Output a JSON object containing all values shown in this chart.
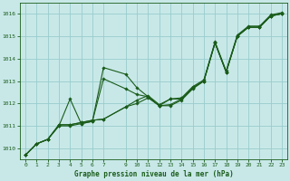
{
  "title": "Graphe pression niveau de la mer (hPa)",
  "bg_color": "#c8e8e8",
  "grid_color": "#99cccc",
  "line_color": "#1a5c1a",
  "ylim": [
    1009.5,
    1016.5
  ],
  "xlim": [
    -0.5,
    23.5
  ],
  "yticks": [
    1010,
    1011,
    1012,
    1013,
    1014,
    1015,
    1016
  ],
  "xticks": [
    0,
    1,
    2,
    3,
    4,
    5,
    6,
    7,
    9,
    10,
    11,
    12,
    13,
    14,
    15,
    16,
    17,
    18,
    19,
    20,
    21,
    22,
    23
  ],
  "series": [
    {
      "x": [
        0,
        1,
        2,
        3,
        4,
        5,
        6,
        7,
        9,
        10,
        11,
        12,
        13,
        14,
        15,
        16,
        17,
        18,
        19,
        20,
        21,
        22,
        23
      ],
      "y": [
        1009.7,
        1010.2,
        1010.4,
        1011.0,
        1011.0,
        1011.1,
        1011.2,
        1013.6,
        1013.3,
        1012.7,
        1012.3,
        1011.9,
        1012.2,
        1012.2,
        1012.7,
        1013.0,
        1014.7,
        1013.4,
        1015.0,
        1015.4,
        1015.4,
        1015.9,
        1016.0
      ]
    },
    {
      "x": [
        0,
        1,
        2,
        3,
        4,
        5,
        6,
        7,
        9,
        10,
        11,
        12,
        13,
        14,
        15,
        16,
        17,
        18,
        19,
        20,
        21,
        22,
        23
      ],
      "y": [
        1009.7,
        1010.2,
        1010.4,
        1011.0,
        1012.2,
        1011.1,
        1011.2,
        1013.1,
        1012.65,
        1012.4,
        1012.3,
        1011.9,
        1011.95,
        1012.2,
        1012.7,
        1013.0,
        1014.7,
        1013.4,
        1015.0,
        1015.4,
        1015.4,
        1015.9,
        1016.0
      ]
    },
    {
      "x": [
        0,
        1,
        2,
        3,
        4,
        5,
        6,
        7,
        9,
        10,
        11,
        12,
        13,
        14,
        15,
        16,
        17,
        18,
        19,
        20,
        21,
        22,
        23
      ],
      "y": [
        1009.7,
        1010.2,
        1010.4,
        1011.05,
        1011.05,
        1011.15,
        1011.25,
        1011.3,
        1011.85,
        1012.15,
        1012.35,
        1011.95,
        1012.2,
        1012.25,
        1012.75,
        1013.05,
        1014.75,
        1013.45,
        1015.05,
        1015.45,
        1015.45,
        1015.95,
        1016.05
      ]
    },
    {
      "x": [
        0,
        1,
        2,
        3,
        4,
        5,
        6,
        7,
        9,
        10,
        11,
        12,
        13,
        14,
        15,
        16,
        17,
        18,
        19,
        20,
        21,
        22,
        23
      ],
      "y": [
        1009.7,
        1010.2,
        1010.4,
        1011.05,
        1011.05,
        1011.15,
        1011.25,
        1011.3,
        1011.85,
        1012.0,
        1012.25,
        1011.9,
        1011.9,
        1012.15,
        1012.65,
        1013.0,
        1014.7,
        1013.4,
        1015.0,
        1015.4,
        1015.4,
        1015.9,
        1016.0
      ]
    }
  ]
}
